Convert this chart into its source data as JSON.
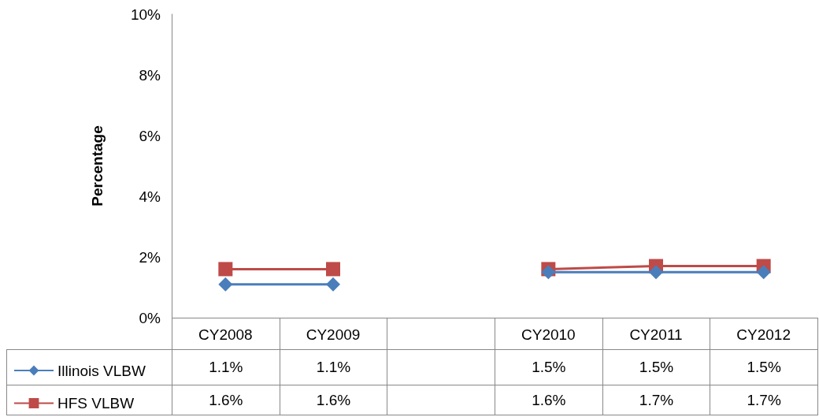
{
  "chart_data": {
    "type": "line",
    "ylabel": "Percentage",
    "categories": [
      "CY2008",
      "CY2009",
      null,
      "CY2010",
      "CY2011",
      "CY2012"
    ],
    "series": [
      {
        "name": "Illinois VLBW",
        "color": "#4a7ebb",
        "marker": "diamond",
        "values": [
          1.1,
          1.1,
          null,
          1.5,
          1.5,
          1.5
        ],
        "value_labels": [
          "1.1%",
          "1.1%",
          null,
          "1.5%",
          "1.5%",
          "1.5%"
        ]
      },
      {
        "name": "HFS VLBW",
        "color": "#be4b48",
        "marker": "square",
        "values": [
          1.6,
          1.6,
          null,
          1.6,
          1.7,
          1.7
        ],
        "value_labels": [
          "1.6%",
          "1.6%",
          null,
          "1.6%",
          "1.7%",
          "1.7%"
        ]
      }
    ],
    "ylim": [
      0,
      10
    ],
    "yticks": [
      {
        "value": 0,
        "label": "0%"
      },
      {
        "value": 2,
        "label": "2%"
      },
      {
        "value": 4,
        "label": "4%"
      },
      {
        "value": 6,
        "label": "6%"
      },
      {
        "value": 8,
        "label": "8%"
      },
      {
        "value": 10,
        "label": "10%"
      }
    ],
    "grid": false,
    "legend": "bottom left"
  }
}
